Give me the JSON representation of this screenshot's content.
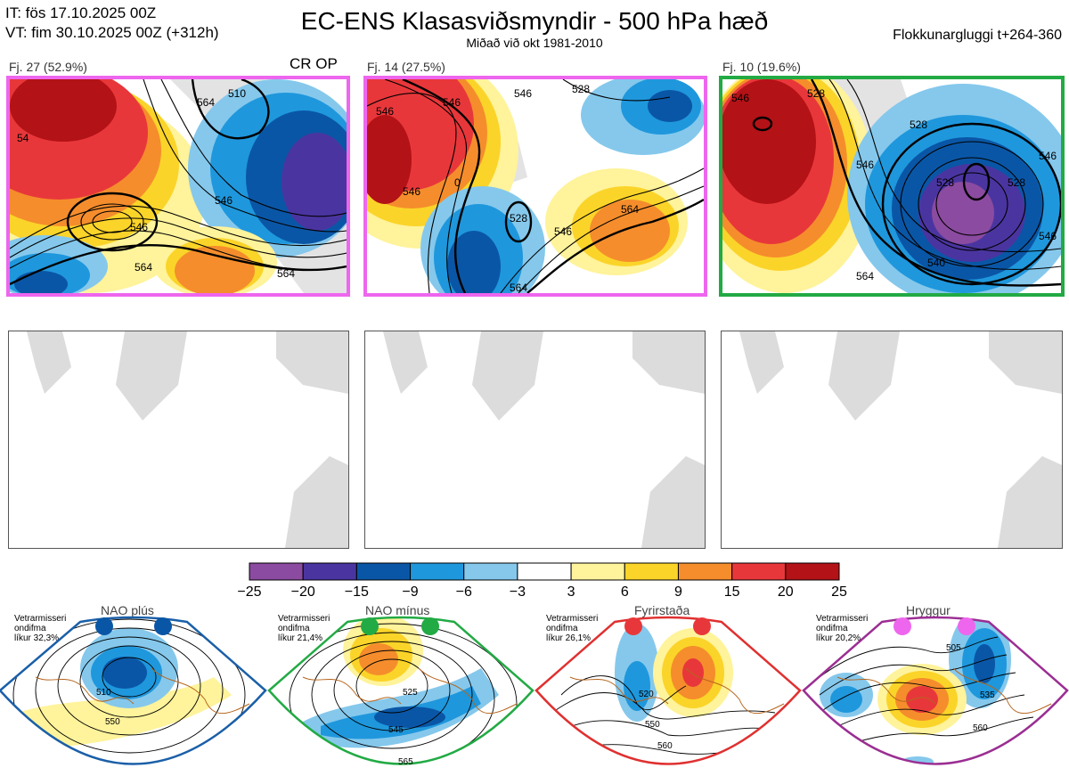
{
  "header": {
    "it_line": "IT: fös 17.10.2025 00Z",
    "vt_line": "VT: fim 30.10.2025 00Z  (+312h)",
    "title": "EC-ENS Klasasviðsmyndir - 500 hPa hæð",
    "subtitle": "Miðað við okt 1981-2010",
    "window": "Flokkunargluggi t+264-360"
  },
  "clusters": [
    {
      "label": "Fj. 27 (52.9%)",
      "border_color": "#ee66ee",
      "contours": [
        "564",
        "546",
        "546",
        "564",
        "54",
        "564",
        "510"
      ],
      "flag": "CR OP"
    },
    {
      "label": "Fj. 14 (27.5%)",
      "border_color": "#ee66ee",
      "contours": [
        "546",
        "546",
        "546",
        "528",
        "546",
        "564",
        "564",
        "528",
        "0",
        "546"
      ]
    },
    {
      "label": "Fj. 10 (19.6%)",
      "border_color": "#22aa44",
      "contours": [
        "528",
        "546",
        "528",
        "546",
        "528",
        "546",
        "564",
        "528",
        "540",
        "546"
      ]
    }
  ],
  "chart_data": {
    "type": "heatmap",
    "title": "EC-ENS Klasasviðsmyndir - 500 hPa hæð",
    "xlabel": "",
    "ylabel": "",
    "colorbar": {
      "ticks": [
        "−25",
        "−20",
        "−15",
        "−9",
        "−6",
        "−3",
        "3",
        "6",
        "9",
        "15",
        "20",
        "25"
      ],
      "colors": [
        "#8b4ba0",
        "#4a35a0",
        "#0a56a6",
        "#1f97dc",
        "#85c8ec",
        "#ffffff",
        "#fff39b",
        "#fbd429",
        "#f58d2c",
        "#e8373a",
        "#b31217"
      ]
    }
  },
  "regimes": [
    {
      "name": "NAO plús",
      "note": [
        "Vetrarmisseri",
        "ondifma",
        "líkur 32,3%"
      ],
      "frame_color": "#1a5fa8",
      "dot_color": "#0a56a6",
      "contours": [
        "510",
        "550"
      ]
    },
    {
      "name": "NAO mínus",
      "note": [
        "Vetrarmisseri",
        "ondifma",
        "líkur 21,4%"
      ],
      "frame_color": "#22aa44",
      "dot_color": "#22aa44",
      "contours": [
        "525",
        "545",
        "565"
      ]
    },
    {
      "name": "Fyrirstaða",
      "note": [
        "Vetrarmisseri",
        "ondifma",
        "líkur 26,1%"
      ],
      "frame_color": "#e03030",
      "dot_color": "#e8373a",
      "contours": [
        "520",
        "550",
        "560"
      ]
    },
    {
      "name": "Hryggur",
      "note": [
        "Vetrarmisseri",
        "ondifma",
        "líkur 20,2%"
      ],
      "frame_color": "#9b2e93",
      "dot_color": "#ee66ee",
      "contours": [
        "505",
        "535",
        "560"
      ]
    }
  ]
}
